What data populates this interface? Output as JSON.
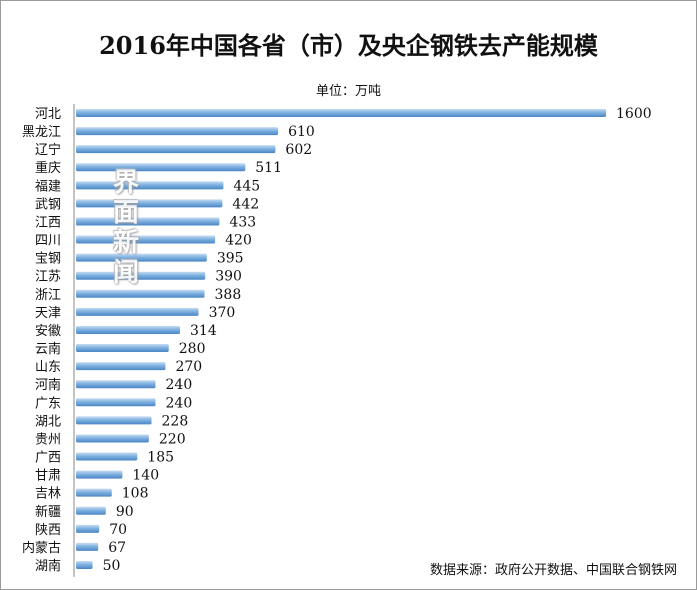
{
  "header": {
    "title": "2016年中国各省（市）及央企钢铁去产能规模",
    "unit": "单位：万吨"
  },
  "footer": {
    "source": "数据来源：政府公开数据、中国联合钢铁网"
  },
  "watermark": {
    "text": "界面新闻"
  },
  "colors": {
    "bar": "#5b9bd5",
    "bar_highlight": "#c6dcf2",
    "axis": "#888888",
    "text": "#111111"
  },
  "chart_data": {
    "type": "bar",
    "orientation": "horizontal",
    "title": "2016年中国各省（市）及央企钢铁去产能规模",
    "unit": "单位：万吨",
    "categories": [
      "河北",
      "黑龙江",
      "辽宁",
      "重庆",
      "福建",
      "武钢",
      "江西",
      "四川",
      "宝钢",
      "江苏",
      "浙江",
      "天津",
      "安徽",
      "云南",
      "山东",
      "河南",
      "广东",
      "湖北",
      "贵州",
      "广西",
      "甘肃",
      "吉林",
      "新疆",
      "陕西",
      "内蒙古",
      "湖南"
    ],
    "values": [
      1600,
      610,
      602,
      511,
      445,
      442,
      433,
      420,
      395,
      390,
      388,
      370,
      314,
      280,
      270,
      240,
      240,
      228,
      220,
      185,
      140,
      108,
      90,
      70,
      67,
      50
    ],
    "value_labels": [
      "1600",
      "610",
      "602",
      "511",
      "445",
      "442",
      "433",
      "420",
      "395",
      "390",
      "388",
      "370",
      "314",
      "280",
      "270",
      "240",
      "240",
      "228",
      "220",
      "185",
      "140",
      "108",
      "90",
      "70",
      "67",
      "50"
    ],
    "xlim": [
      0,
      1600
    ],
    "grid": false,
    "legend": "none"
  }
}
